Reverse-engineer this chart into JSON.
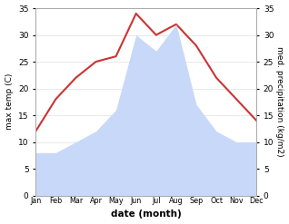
{
  "months": [
    "Jan",
    "Feb",
    "Mar",
    "Apr",
    "May",
    "Jun",
    "Jul",
    "Aug",
    "Sep",
    "Oct",
    "Nov",
    "Dec"
  ],
  "temperature": [
    12,
    18,
    22,
    25,
    26,
    34,
    30,
    32,
    28,
    22,
    18,
    14
  ],
  "precipitation": [
    8,
    8,
    10,
    12,
    16,
    30,
    27,
    32,
    17,
    12,
    10,
    10
  ],
  "temp_color": "#cc3333",
  "precip_fill_color": "#c8d8f8",
  "ylabel_left": "max temp (C)",
  "ylabel_right": "med. precipitation (kg/m2)",
  "xlabel": "date (month)",
  "ylim": [
    0,
    35
  ],
  "yticks": [
    0,
    5,
    10,
    15,
    20,
    25,
    30,
    35
  ],
  "bg_color": "#ffffff",
  "spine_color": "#aaaaaa"
}
